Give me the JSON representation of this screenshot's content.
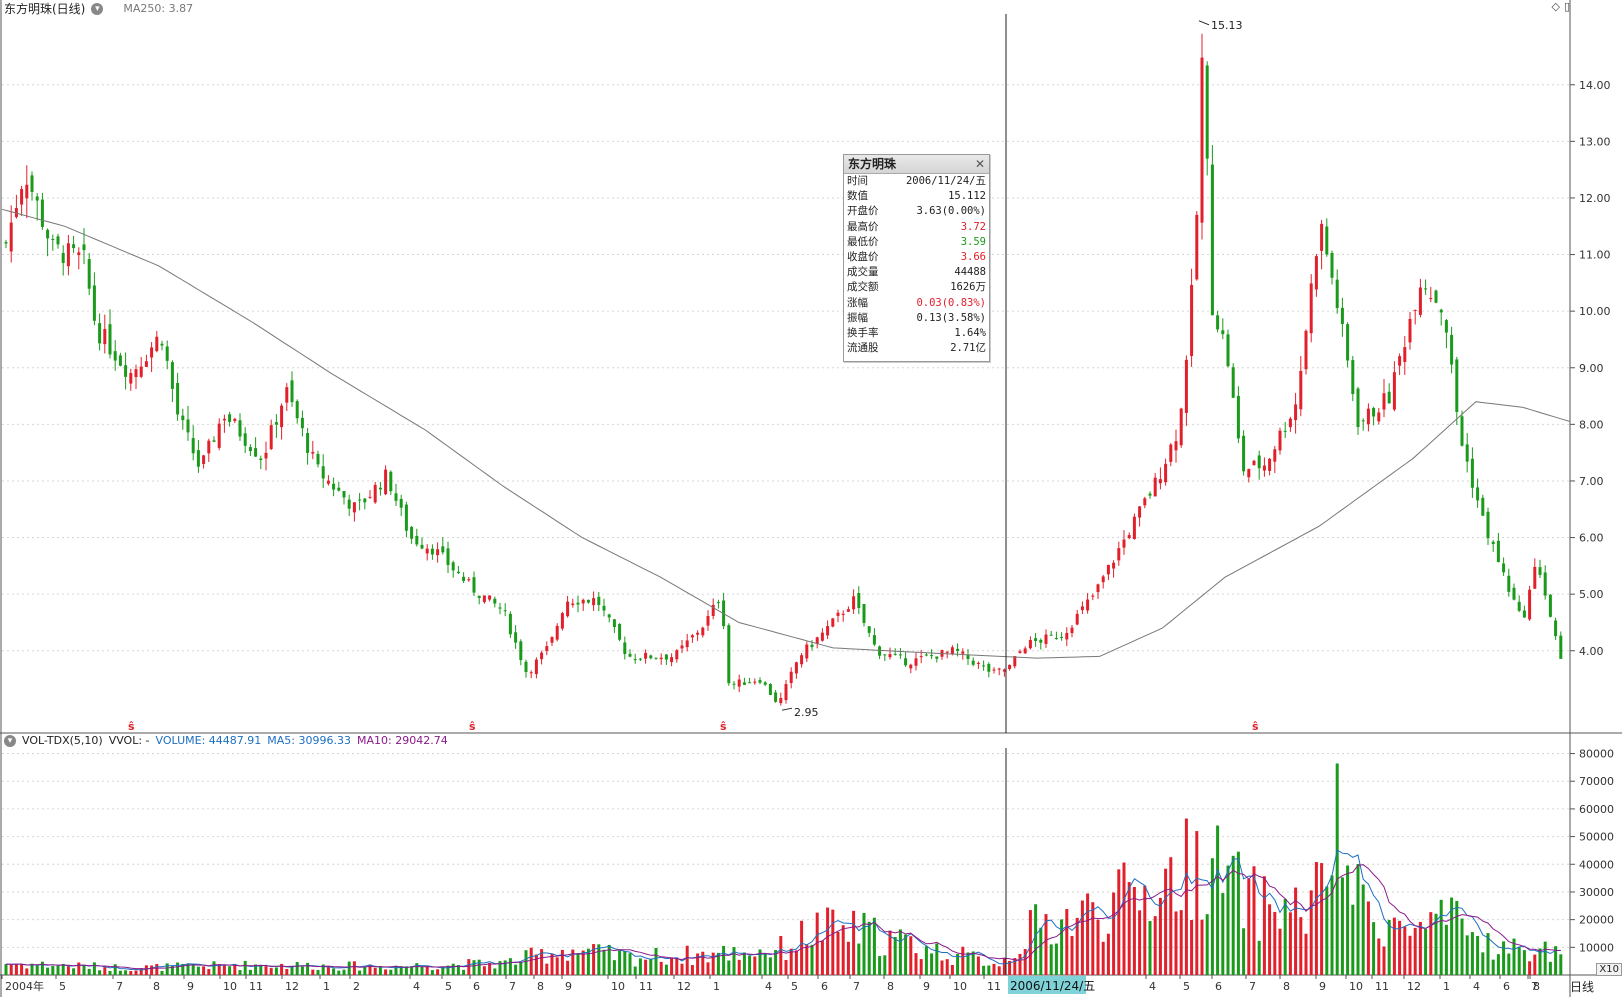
{
  "header": {
    "title": "东方明珠(日线)",
    "ma_label": "MA250: 3.87"
  },
  "volume_header": {
    "indicator": "VOL-TDX(5,10)",
    "vvol": "VVOL: -",
    "volume": "VOLUME: 44487.91",
    "ma5": "MA5: 30996.33",
    "ma10": "MA10: 29042.74"
  },
  "info_box": {
    "title": "东方明珠",
    "rows": [
      {
        "label": "时间",
        "value": "2006/11/24/五",
        "color": "#222222"
      },
      {
        "label": "数值",
        "value": "15.112",
        "color": "#222222"
      },
      {
        "label": "开盘价",
        "value": "3.63(0.00%)",
        "color": "#222222"
      },
      {
        "label": "最高价",
        "value": "3.72",
        "color": "#e0202b"
      },
      {
        "label": "最低价",
        "value": "3.59",
        "color": "#1a9a1a"
      },
      {
        "label": "收盘价",
        "value": "3.66",
        "color": "#e0202b"
      },
      {
        "label": "成交量",
        "value": "44488",
        "color": "#222222"
      },
      {
        "label": "成交额",
        "value": "1626万",
        "color": "#222222"
      },
      {
        "label": "涨幅",
        "value": "0.03(0.83%)",
        "color": "#e0202b"
      },
      {
        "label": "振幅",
        "value": "0.13(3.58%)",
        "color": "#222222"
      },
      {
        "label": "换手率",
        "value": "1.64%",
        "color": "#222222"
      },
      {
        "label": "流通股",
        "value": "2.71亿",
        "color": "#222222"
      }
    ]
  },
  "footer": {
    "period": "日线",
    "x10": "X10",
    "cursor_date": "2006/11/24/五"
  },
  "colors": {
    "up": "#e0202b",
    "down": "#1a9a1a",
    "ma250": "#777777",
    "ma5_line": "#1c6fc2",
    "ma10_line": "#8a1a8a"
  },
  "chart_data": {
    "type": "candlestick",
    "price_axis": {
      "ticks": [
        4,
        5,
        6,
        7,
        8,
        9,
        10,
        11,
        12,
        13,
        14
      ],
      "ylim": [
        2.6,
        15.25
      ]
    },
    "volume_axis": {
      "ticks": [
        10000,
        20000,
        30000,
        40000,
        50000,
        60000,
        70000,
        80000
      ],
      "ylim": [
        0,
        82000
      ]
    },
    "x_labels": [
      "2004年",
      "5",
      "7",
      "8",
      "9",
      "10",
      "11",
      "12",
      "1",
      "2",
      "4",
      "5",
      "6",
      "7",
      "8",
      "9",
      "10",
      "11",
      "12",
      "1",
      "4",
      "5",
      "6",
      "7",
      "8",
      "9",
      "10",
      "11",
      "2006/11/24/五",
      "4",
      "5",
      "6",
      "7",
      "8",
      "9",
      "10",
      "11",
      "12",
      "1",
      "4",
      "6",
      "7",
      "8"
    ],
    "annotations": [
      {
        "label": "15.13",
        "value": 15.13,
        "type": "high"
      },
      {
        "label": "2.95",
        "value": 2.95,
        "type": "low"
      }
    ],
    "price_keypoints": [
      {
        "t": 0.0,
        "v": 11.2
      },
      {
        "t": 0.012,
        "v": 12.5
      },
      {
        "t": 0.03,
        "v": 11.1
      },
      {
        "t": 0.05,
        "v": 10.9
      },
      {
        "t": 0.058,
        "v": 9.7
      },
      {
        "t": 0.08,
        "v": 8.9
      },
      {
        "t": 0.1,
        "v": 9.6
      },
      {
        "t": 0.11,
        "v": 8.2
      },
      {
        "t": 0.125,
        "v": 7.2
      },
      {
        "t": 0.14,
        "v": 8.2
      },
      {
        "t": 0.165,
        "v": 7.4
      },
      {
        "t": 0.18,
        "v": 8.6
      },
      {
        "t": 0.2,
        "v": 7.2
      },
      {
        "t": 0.225,
        "v": 6.5
      },
      {
        "t": 0.245,
        "v": 7.1
      },
      {
        "t": 0.26,
        "v": 6.0
      },
      {
        "t": 0.275,
        "v": 5.8
      },
      {
        "t": 0.3,
        "v": 5.1
      },
      {
        "t": 0.32,
        "v": 4.7
      },
      {
        "t": 0.335,
        "v": 3.6
      },
      {
        "t": 0.35,
        "v": 4.1
      },
      {
        "t": 0.36,
        "v": 4.9
      },
      {
        "t": 0.38,
        "v": 4.9
      },
      {
        "t": 0.4,
        "v": 3.9
      },
      {
        "t": 0.43,
        "v": 3.9
      },
      {
        "t": 0.45,
        "v": 4.5
      },
      {
        "t": 0.46,
        "v": 5.0
      },
      {
        "t": 0.465,
        "v": 3.4
      },
      {
        "t": 0.485,
        "v": 3.5
      },
      {
        "t": 0.497,
        "v": 3.05
      },
      {
        "t": 0.51,
        "v": 3.9
      },
      {
        "t": 0.525,
        "v": 4.3
      },
      {
        "t": 0.545,
        "v": 4.9
      },
      {
        "t": 0.56,
        "v": 4.0
      },
      {
        "t": 0.58,
        "v": 3.8
      },
      {
        "t": 0.61,
        "v": 4.0
      },
      {
        "t": 0.635,
        "v": 3.6
      },
      {
        "t": 0.645,
        "v": 3.7
      },
      {
        "t": 0.655,
        "v": 4.1
      },
      {
        "t": 0.68,
        "v": 4.3
      },
      {
        "t": 0.7,
        "v": 5.0
      },
      {
        "t": 0.72,
        "v": 6.0
      },
      {
        "t": 0.74,
        "v": 7.0
      },
      {
        "t": 0.755,
        "v": 8.0
      },
      {
        "t": 0.765,
        "v": 11.0
      },
      {
        "t": 0.77,
        "v": 15.0
      },
      {
        "t": 0.775,
        "v": 10.2
      },
      {
        "t": 0.785,
        "v": 9.3
      },
      {
        "t": 0.795,
        "v": 7.2
      },
      {
        "t": 0.81,
        "v": 7.3
      },
      {
        "t": 0.83,
        "v": 8.4
      },
      {
        "t": 0.845,
        "v": 11.6
      },
      {
        "t": 0.855,
        "v": 10.3
      },
      {
        "t": 0.87,
        "v": 8.0
      },
      {
        "t": 0.89,
        "v": 8.5
      },
      {
        "t": 0.91,
        "v": 10.6
      },
      {
        "t": 0.925,
        "v": 10.0
      },
      {
        "t": 0.935,
        "v": 7.8
      },
      {
        "t": 0.95,
        "v": 6.3
      },
      {
        "t": 0.965,
        "v": 5.2
      },
      {
        "t": 0.975,
        "v": 4.5
      },
      {
        "t": 0.985,
        "v": 5.6
      },
      {
        "t": 1.0,
        "v": 3.8
      }
    ],
    "ma250_keypoints": [
      {
        "t": 0.0,
        "v": 11.8
      },
      {
        "t": 0.04,
        "v": 11.5
      },
      {
        "t": 0.1,
        "v": 10.8
      },
      {
        "t": 0.16,
        "v": 9.8
      },
      {
        "t": 0.21,
        "v": 8.9
      },
      {
        "t": 0.27,
        "v": 7.9
      },
      {
        "t": 0.32,
        "v": 6.9
      },
      {
        "t": 0.37,
        "v": 6.0
      },
      {
        "t": 0.42,
        "v": 5.3
      },
      {
        "t": 0.47,
        "v": 4.5
      },
      {
        "t": 0.53,
        "v": 4.05
      },
      {
        "t": 0.6,
        "v": 3.95
      },
      {
        "t": 0.66,
        "v": 3.87
      },
      {
        "t": 0.7,
        "v": 3.9
      },
      {
        "t": 0.74,
        "v": 4.4
      },
      {
        "t": 0.78,
        "v": 5.3
      },
      {
        "t": 0.84,
        "v": 6.2
      },
      {
        "t": 0.9,
        "v": 7.4
      },
      {
        "t": 0.94,
        "v": 8.4
      },
      {
        "t": 0.97,
        "v": 8.3
      },
      {
        "t": 1.0,
        "v": 8.05
      }
    ],
    "volume_keypoints": [
      {
        "t": 0.0,
        "v": 4000
      },
      {
        "t": 0.08,
        "v": 2500
      },
      {
        "t": 0.16,
        "v": 3500
      },
      {
        "t": 0.24,
        "v": 3000
      },
      {
        "t": 0.32,
        "v": 4000
      },
      {
        "t": 0.36,
        "v": 9000
      },
      {
        "t": 0.4,
        "v": 6000
      },
      {
        "t": 0.45,
        "v": 7000
      },
      {
        "t": 0.5,
        "v": 9000
      },
      {
        "t": 0.52,
        "v": 16000
      },
      {
        "t": 0.55,
        "v": 15000
      },
      {
        "t": 0.6,
        "v": 8000
      },
      {
        "t": 0.64,
        "v": 4000
      },
      {
        "t": 0.66,
        "v": 16000
      },
      {
        "t": 0.7,
        "v": 22000
      },
      {
        "t": 0.74,
        "v": 30000
      },
      {
        "t": 0.77,
        "v": 40000
      },
      {
        "t": 0.8,
        "v": 25000
      },
      {
        "t": 0.84,
        "v": 22000
      },
      {
        "t": 0.855,
        "v": 50000
      },
      {
        "t": 0.87,
        "v": 25000
      },
      {
        "t": 0.9,
        "v": 15000
      },
      {
        "t": 0.93,
        "v": 18000
      },
      {
        "t": 0.96,
        "v": 9000
      },
      {
        "t": 1.0,
        "v": 8000
      }
    ]
  }
}
